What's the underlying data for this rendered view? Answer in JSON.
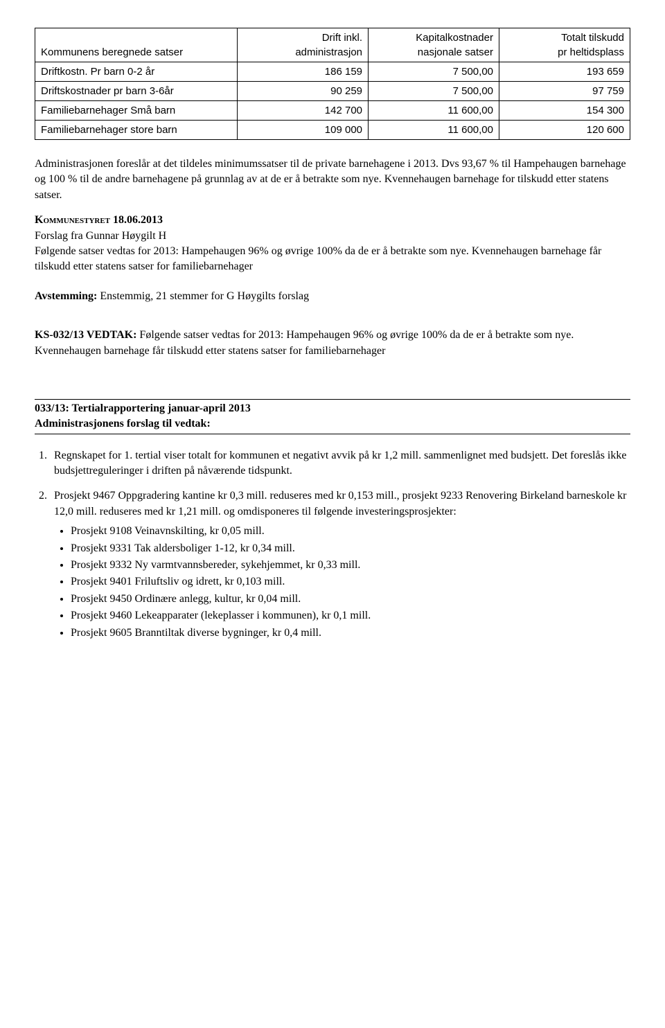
{
  "table": {
    "columns": [
      "Kommunens beregnede satser",
      "Drift inkl.\nadministrasjon",
      "Kapitalkostnader\nnasjonale satser",
      "Totalt tilskudd\npr heltidsplass"
    ],
    "rows": [
      [
        "Driftkostn. Pr barn 0-2 år",
        "186 159",
        "7 500,00",
        "193 659"
      ],
      [
        "Driftskostnader pr barn 3-6år",
        "90 259",
        "7 500,00",
        "97 759"
      ],
      [
        "Familiebarnehager Små barn",
        "142 700",
        "11 600,00",
        "154 300"
      ],
      [
        "Familiebarnehager store barn",
        "109 000",
        "11 600,00",
        "120 600"
      ]
    ]
  },
  "body": {
    "admin_para": "Administrasjonen foreslår at det tildeles minimumssatser til de private barnehagene i 2013. Dvs 93,67 % til Hampehaugen barnehage og 100 % til de andre barnehagene på grunnlag av at de er å betrakte som nye. Kvennehaugen barnehage for tilskudd etter statens satser.",
    "kommunestyret_label": "Kommunestyret",
    "kommunestyret_date": " 18.06.2013",
    "forslag_line": "Forslag fra Gunnar Høygilt H",
    "forslag_para": "Følgende satser vedtas for 2013: Hampehaugen 96% og øvrige 100% da de er å betrakte som nye. Kvennehaugen barnehage får tilskudd etter statens satser for familiebarnehager",
    "avstemming_label": "Avstemming:",
    "avstemming_text": "  Enstemmig, 21 stemmer for G Høygilts  forslag",
    "vedtak_label": "KS-032/13 VEDTAK:",
    "vedtak_text": "  Følgende satser vedtas for 2013: Hampehaugen 96% og øvrige 100% da de er å betrakte som nye. Kvennehaugen barnehage får tilskudd etter statens satser for familiebarnehager"
  },
  "section033": {
    "title": "033/13: Tertialrapportering januar-april 2013",
    "subtitle": "Administrasjonens forslag til vedtak:",
    "item1": "Regnskapet for 1. tertial viser totalt for kommunen et negativt avvik på kr 1,2 mill. sammenlignet med budsjett. Det foreslås ikke budsjettreguleringer i driften på nåværende tidspunkt.",
    "item2_intro": "Prosjekt 9467 Oppgradering kantine kr 0,3 mill. reduseres med kr 0,153 mill., prosjekt 9233 Renovering Birkeland barneskole kr 12,0 mill. reduseres med kr 1,21 mill. og omdisponeres til følgende investeringsprosjekter:",
    "bullets": [
      "Prosjekt 9108 Veinavnskilting, kr 0,05 mill.",
      "Prosjekt 9331 Tak aldersboliger 1-12, kr 0,34 mill.",
      "Prosjekt 9332 Ny varmtvannsbereder, sykehjemmet, kr 0,33 mill.",
      "Prosjekt 9401 Friluftsliv og idrett, kr 0,103 mill.",
      "Prosjekt 9450 Ordinære anlegg, kultur, kr 0,04 mill.",
      "Prosjekt 9460 Lekeapparater (lekeplasser i kommunen), kr 0,1 mill.",
      "Prosjekt 9605 Branntiltak diverse bygninger, kr 0,4 mill."
    ]
  }
}
